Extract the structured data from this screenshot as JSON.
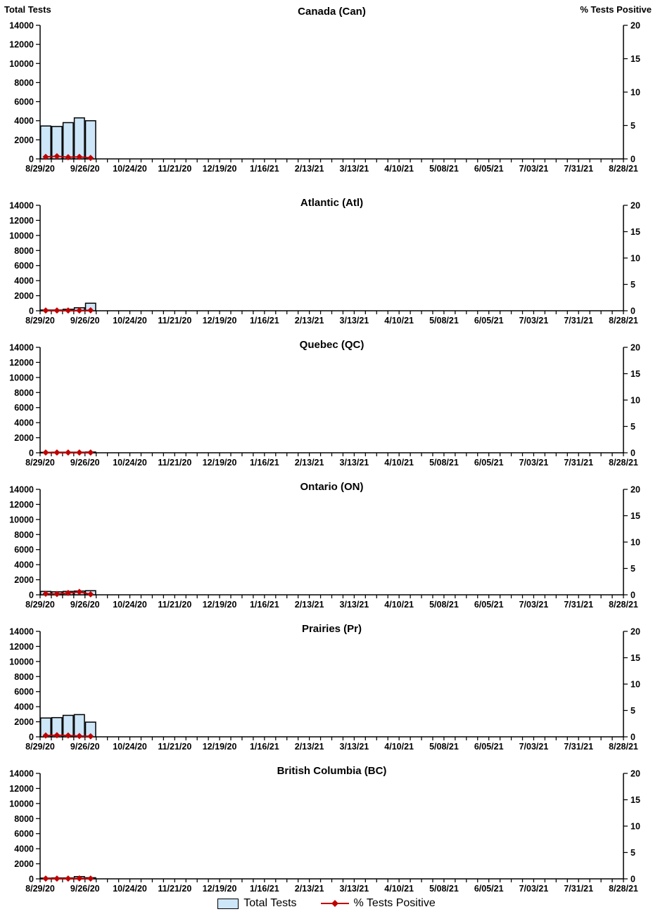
{
  "axes": {
    "left": {
      "title": "Total Tests",
      "ticks": [
        0,
        2000,
        4000,
        6000,
        8000,
        10000,
        12000,
        14000
      ],
      "range": [
        0,
        14000
      ]
    },
    "right": {
      "title": "% Tests Positive",
      "ticks": [
        0,
        5,
        10,
        15,
        20
      ],
      "range": [
        0,
        20
      ]
    },
    "x": {
      "tick_labels": [
        "8/29/20",
        "9/26/20",
        "10/24/20",
        "11/21/20",
        "12/19/20",
        "1/16/21",
        "2/13/21",
        "3/13/21",
        "4/10/21",
        "5/08/21",
        "6/05/21",
        "7/03/21",
        "7/31/21",
        "8/28/21"
      ],
      "weeks": 53,
      "label_interval": 4,
      "range_dates": [
        "8/29/20",
        "8/28/21"
      ]
    }
  },
  "colors": {
    "bar_fill": "#CDE6F8",
    "bar_border": "#000000",
    "line": "#C00000",
    "marker": "#C00000",
    "axis": "#000000"
  },
  "legend": {
    "items": [
      {
        "label": "Total Tests",
        "symbol": "bar-swatch"
      },
      {
        "label": "% Tests Positive",
        "symbol": "line-diamond"
      }
    ]
  },
  "chart_data": [
    {
      "id": "can",
      "type": "bar",
      "title": "Canada (Can)",
      "categories": [
        "8/29/20",
        "9/05/20",
        "9/12/20",
        "9/19/20",
        "9/26/20"
      ],
      "series": [
        {
          "name": "Total Tests",
          "type": "bar",
          "axis": "left",
          "values": [
            3450,
            3400,
            3800,
            4300,
            4000
          ]
        },
        {
          "name": "% Tests Positive",
          "type": "line",
          "axis": "right",
          "values": [
            0.3,
            0.4,
            0.25,
            0.3,
            0.15
          ]
        }
      ],
      "left_ylim": [
        0,
        14000
      ],
      "right_ylim": [
        0,
        20
      ]
    },
    {
      "id": "atl",
      "type": "bar",
      "title": "Atlantic (Atl)",
      "categories": [
        "8/29/20",
        "9/05/20",
        "9/12/20",
        "9/19/20",
        "9/26/20"
      ],
      "series": [
        {
          "name": "Total Tests",
          "type": "bar",
          "axis": "left",
          "values": [
            100,
            100,
            200,
            400,
            1000
          ]
        },
        {
          "name": "% Tests Positive",
          "type": "line",
          "axis": "right",
          "values": [
            0.05,
            0.05,
            0.05,
            0.05,
            0.08
          ]
        }
      ],
      "left_ylim": [
        0,
        14000
      ],
      "right_ylim": [
        0,
        20
      ]
    },
    {
      "id": "qc",
      "type": "bar",
      "title": "Quebec (QC)",
      "categories": [
        "8/29/20",
        "9/05/20",
        "9/12/20",
        "9/19/20",
        "9/26/20"
      ],
      "series": [
        {
          "name": "Total Tests",
          "type": "bar",
          "axis": "left",
          "values": [
            60,
            80,
            80,
            80,
            100
          ]
        },
        {
          "name": "% Tests Positive",
          "type": "line",
          "axis": "right",
          "values": [
            0.05,
            0.05,
            0.05,
            0.05,
            0.05
          ]
        }
      ],
      "left_ylim": [
        0,
        14000
      ],
      "right_ylim": [
        0,
        20
      ]
    },
    {
      "id": "on",
      "type": "bar",
      "title": "Ontario (ON)",
      "categories": [
        "8/29/20",
        "9/05/20",
        "9/12/20",
        "9/19/20",
        "9/26/20"
      ],
      "series": [
        {
          "name": "Total Tests",
          "type": "bar",
          "axis": "left",
          "values": [
            450,
            400,
            450,
            500,
            550
          ]
        },
        {
          "name": "% Tests Positive",
          "type": "line",
          "axis": "right",
          "values": [
            0.2,
            0.15,
            0.35,
            0.55,
            0.1
          ]
        }
      ],
      "left_ylim": [
        0,
        14000
      ],
      "right_ylim": [
        0,
        20
      ]
    },
    {
      "id": "pr",
      "type": "bar",
      "title": "Prairies (Pr)",
      "categories": [
        "8/29/20",
        "9/05/20",
        "9/12/20",
        "9/19/20",
        "9/26/20"
      ],
      "series": [
        {
          "name": "Total Tests",
          "type": "bar",
          "axis": "left",
          "values": [
            2500,
            2550,
            2850,
            2950,
            1950
          ]
        },
        {
          "name": "% Tests Positive",
          "type": "line",
          "axis": "right",
          "values": [
            0.25,
            0.3,
            0.25,
            0.15,
            0.1
          ]
        }
      ],
      "left_ylim": [
        0,
        14000
      ],
      "right_ylim": [
        0,
        20
      ]
    },
    {
      "id": "bc",
      "type": "bar",
      "title": "British Columbia (BC)",
      "categories": [
        "8/29/20",
        "9/05/20",
        "9/12/20",
        "9/19/20",
        "9/26/20"
      ],
      "series": [
        {
          "name": "Total Tests",
          "type": "bar",
          "axis": "left",
          "values": [
            100,
            120,
            120,
            300,
            150
          ]
        },
        {
          "name": "% Tests Positive",
          "type": "line",
          "axis": "right",
          "values": [
            0.05,
            0.05,
            0.05,
            0.08,
            0.05
          ]
        }
      ],
      "left_ylim": [
        0,
        14000
      ],
      "right_ylim": [
        0,
        20
      ]
    }
  ]
}
